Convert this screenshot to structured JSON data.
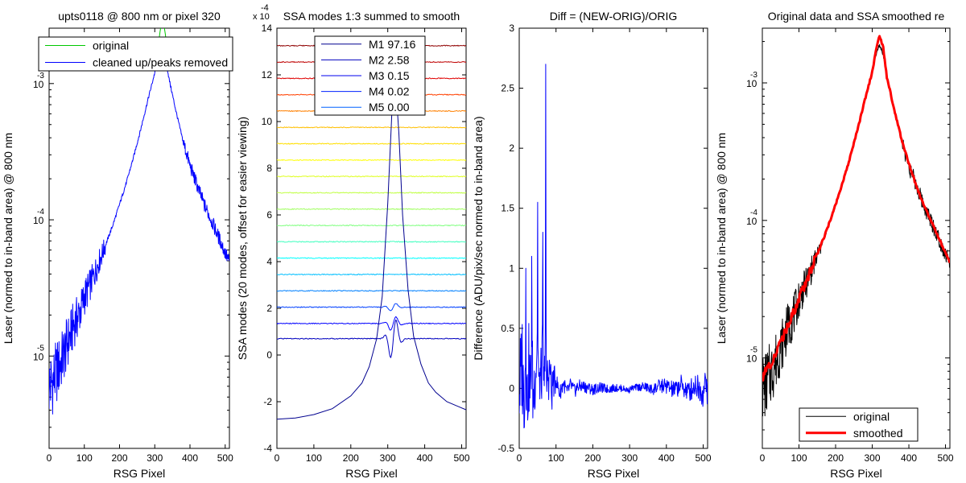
{
  "chart_data": [
    {
      "type": "line",
      "title": "upts0118 @ 800 nm or pixel 320",
      "xlabel": "RSG Pixel",
      "ylabel": "Laser (normed to in-band area) @ 800 nm",
      "xlim": [
        0,
        512
      ],
      "ylim": [
        2.1e-06,
        0.00255
      ],
      "yscale": "log",
      "xticks": [
        0,
        100,
        200,
        300,
        400,
        500
      ],
      "xtick_labels": [
        "0",
        "100",
        "200",
        "300",
        "400",
        "500"
      ],
      "yticks": [
        1e-05,
        0.0001,
        0.001
      ],
      "ytick_bases": [
        "10",
        "10",
        "10"
      ],
      "ytick_exps": [
        "-5",
        "-4",
        "-3"
      ],
      "legend": {
        "placement": "top",
        "entries": [
          "original",
          "cleaned up/peaks removed"
        ]
      },
      "series": [
        {
          "name": "original",
          "color": "#00c800",
          "x": [
            300,
            310,
            315,
            320,
            325,
            330,
            335,
            340
          ],
          "y": [
            0.0014,
            0.0019,
            0.0024,
            0.0029,
            0.0028,
            0.0023,
            0.0018,
            0.0013
          ]
        },
        {
          "name": "cleaned up/peaks removed",
          "color": "#0000ff",
          "x": [
            0,
            10,
            20,
            30,
            40,
            50,
            60,
            70,
            80,
            90,
            100,
            120,
            140,
            160,
            180,
            200,
            220,
            240,
            260,
            280,
            300,
            310,
            320,
            330,
            340,
            360,
            380,
            400,
            420,
            440,
            460,
            480,
            500,
            512
          ],
          "y": [
            6e-06,
            6.5e-06,
            7.5e-06,
            8.5e-06,
            1e-05,
            1.2e-05,
            1.4e-05,
            1.7e-05,
            1.9e-05,
            2.2e-05,
            2.7e-05,
            3.5e-05,
            4.8e-05,
            6.5e-05,
            9e-05,
            0.00013,
            0.00019,
            0.00029,
            0.00046,
            0.00075,
            0.0012,
            0.0016,
            0.0019,
            0.0016,
            0.0011,
            0.00063,
            0.00038,
            0.00025,
            0.00018,
            0.00013,
            0.0001,
            7.6e-05,
            5.7e-05,
            4.9e-05
          ]
        }
      ]
    },
    {
      "type": "line",
      "title": "SSA modes 1:3 summed to smooth",
      "xlabel": "RSG Pixel",
      "ylabel": "SSA modes (20 modes, offset for easier viewing)",
      "y_multiplier_base": "x 10",
      "y_multiplier_exp": "-4",
      "xlim": [
        0,
        512
      ],
      "ylim": [
        -4,
        14
      ],
      "xticks": [
        0,
        100,
        200,
        300,
        400,
        500
      ],
      "xtick_labels": [
        "0",
        "100",
        "200",
        "300",
        "400",
        "500"
      ],
      "yticks": [
        -4,
        -2,
        0,
        2,
        4,
        6,
        8,
        10,
        12,
        14
      ],
      "ytick_labels": [
        "-4",
        "-2",
        "0",
        "2",
        "4",
        "6",
        "8",
        "10",
        "12",
        "14"
      ],
      "legend": {
        "placement": "top",
        "entries": [
          "M1 97.16",
          "M2 2.58",
          "M3 0.15",
          "M4 0.02",
          "M5 0.00"
        ]
      },
      "legend_colors": [
        "#00008f",
        "#0000bf",
        "#0000ef",
        "#0020ff",
        "#0060ff"
      ],
      "mode1": {
        "color": "#00008f",
        "x": [
          0,
          50,
          100,
          150,
          200,
          230,
          250,
          270,
          285,
          300,
          310,
          315,
          320,
          330,
          340,
          355,
          370,
          390,
          410,
          430,
          460,
          490,
          512
        ],
        "y": [
          -2.75,
          -2.7,
          -2.55,
          -2.3,
          -1.75,
          -1.2,
          -0.5,
          0.7,
          2.5,
          6.5,
          10,
          11.8,
          11.9,
          9.5,
          6,
          2.8,
          0.8,
          -0.4,
          -1.2,
          -1.6,
          -2,
          -2.2,
          -2.35
        ]
      },
      "mode_offsets": [
        0.7,
        1.35,
        2.05,
        2.75,
        3.45,
        4.15,
        4.85,
        5.55,
        6.25,
        6.95,
        7.65,
        8.35,
        9.05,
        9.75,
        10.45,
        11.15,
        11.85,
        12.55,
        13.25
      ],
      "mode_colors": [
        "#0000bf",
        "#0000ff",
        "#0040ff",
        "#0080ff",
        "#00bfff",
        "#00ffff",
        "#40ffbf",
        "#80ff80",
        "#a0ff60",
        "#bfff40",
        "#dfff20",
        "#ffff00",
        "#ffdf00",
        "#ffbf00",
        "#ff8000",
        "#ff4000",
        "#df0000",
        "#bf0000",
        "#8f0000"
      ]
    },
    {
      "type": "line",
      "title": "Diff = (NEW-ORIG)/ORIG",
      "xlabel": "RSG Pixel",
      "ylabel": "Difference (ADU/pix/sec normed to in-band area)",
      "xlim": [
        0,
        512
      ],
      "ylim": [
        -0.5,
        3
      ],
      "xticks": [
        0,
        100,
        200,
        300,
        400,
        500
      ],
      "xtick_labels": [
        "0",
        "100",
        "200",
        "300",
        "400",
        "500"
      ],
      "yticks": [
        -0.5,
        0,
        0.5,
        1,
        1.5,
        2,
        2.5,
        3
      ],
      "ytick_labels": [
        "-0.5",
        "0",
        "0.5",
        "1",
        "1.5",
        "2",
        "2.5",
        "3"
      ],
      "series": [
        {
          "name": "",
          "color": "#0000ff",
          "x": [
            0,
            6,
            8,
            12,
            16,
            18,
            22,
            26,
            30,
            34,
            38,
            42,
            46,
            50,
            54,
            56,
            60,
            64,
            68,
            72,
            74,
            76,
            80,
            84,
            88,
            92,
            96,
            100,
            110,
            120,
            130,
            140,
            150,
            160,
            180,
            200,
            220,
            240,
            260,
            280,
            300,
            302,
            320,
            340,
            360,
            380,
            400,
            420,
            440,
            460,
            480,
            500,
            508,
            512
          ],
          "y": [
            0,
            0.4,
            0.8,
            -0.3,
            0.5,
            1.0,
            -0.35,
            0.6,
            -0.2,
            1.1,
            -0.4,
            0.3,
            0.7,
            1.55,
            -0.3,
            0.4,
            0.2,
            1.3,
            -0.35,
            2.7,
            -0.3,
            0.4,
            0.3,
            0.6,
            -0.25,
            0.3,
            0.15,
            0.25,
            -0.15,
            0.15,
            -0.12,
            0.1,
            -0.08,
            0.06,
            0.04,
            -0.03,
            0.02,
            -0.02,
            0.01,
            0,
            -0.06,
            0,
            0.03,
            0.05,
            -0.04,
            0.06,
            0.07,
            -0.06,
            0.09,
            -0.1,
            0.12,
            -0.15,
            0.25,
            -0.18
          ]
        }
      ]
    },
    {
      "type": "line",
      "title": "Original data and SSA smoothed re",
      "xlabel": "RSG Pixel",
      "ylabel": "Laser (normed to in-band area) @ 800 nm",
      "xlim": [
        0,
        512
      ],
      "ylim": [
        2.2e-06,
        0.0025
      ],
      "yscale": "log",
      "xticks": [
        0,
        100,
        200,
        300,
        400,
        500
      ],
      "xtick_labels": [
        "0",
        "100",
        "200",
        "300",
        "400",
        "500"
      ],
      "yticks": [
        1e-05,
        0.0001,
        0.001
      ],
      "ytick_bases": [
        "10",
        "10",
        "10"
      ],
      "ytick_exps": [
        "-5",
        "-4",
        "-3"
      ],
      "legend": {
        "placement": "bottom",
        "entries": [
          "original",
          "smoothed"
        ]
      },
      "series": [
        {
          "name": "original",
          "color": "#000000",
          "x": [
            0,
            10,
            20,
            30,
            40,
            50,
            60,
            70,
            80,
            90,
            100,
            120,
            140,
            160,
            180,
            200,
            220,
            240,
            260,
            280,
            300,
            310,
            320,
            330,
            340,
            360,
            380,
            400,
            420,
            440,
            460,
            480,
            500,
            512
          ],
          "y": [
            6e-06,
            6.5e-06,
            7.5e-06,
            8.5e-06,
            1e-05,
            1.2e-05,
            1.4e-05,
            1.7e-05,
            1.9e-05,
            2.2e-05,
            2.7e-05,
            3.5e-05,
            4.8e-05,
            6.5e-05,
            9e-05,
            0.00013,
            0.00019,
            0.00029,
            0.00046,
            0.00075,
            0.0012,
            0.0016,
            0.0019,
            0.0016,
            0.0011,
            0.00063,
            0.00038,
            0.00025,
            0.00018,
            0.00013,
            0.0001,
            7.6e-05,
            5.7e-05,
            4.9e-05
          ]
        },
        {
          "name": "smoothed",
          "color": "#ff0000",
          "x": [
            0,
            10,
            20,
            30,
            40,
            50,
            60,
            70,
            80,
            90,
            100,
            120,
            140,
            160,
            180,
            200,
            220,
            240,
            260,
            280,
            300,
            310,
            320,
            330,
            340,
            360,
            380,
            400,
            420,
            440,
            460,
            480,
            500,
            512
          ],
          "y": [
            7e-06,
            8e-06,
            9e-06,
            9.5e-06,
            1.1e-05,
            1.3e-05,
            1.5e-05,
            1.7e-05,
            2e-05,
            2.3e-05,
            2.7e-05,
            3.6e-05,
            4.9e-05,
            6.6e-05,
            9.1e-05,
            0.00013,
            0.00019,
            0.00029,
            0.00046,
            0.00075,
            0.0012,
            0.0017,
            0.0022,
            0.0018,
            0.0011,
            0.00064,
            0.00039,
            0.00026,
            0.00018,
            0.00013,
            0.0001,
            7.6e-05,
            5.8e-05,
            5e-05
          ]
        }
      ]
    }
  ]
}
